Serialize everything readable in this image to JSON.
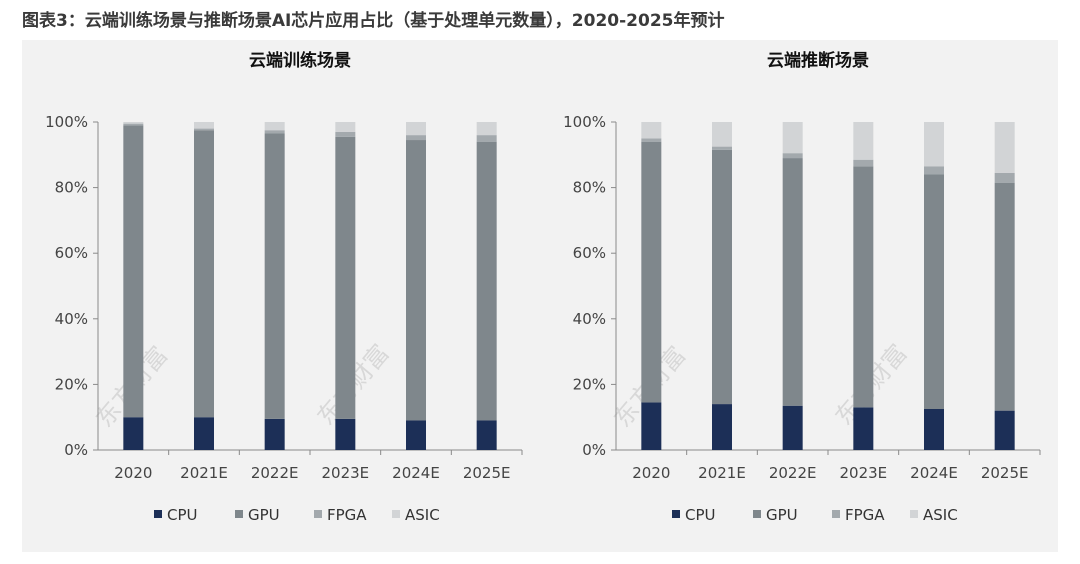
{
  "figure_title": "图表3：云端训练场景与推断场景AI芯片应用占比（基于处理单元数量），2020-2025年预计",
  "watermark": "东方财富",
  "colors": {
    "CPU": "#1c2f57",
    "GPU": "#7f878c",
    "FPGA": "#a3a9ad",
    "ASIC": "#d2d4d6",
    "axis": "#8a8a8a",
    "bg": "#f2f2f2"
  },
  "chart_data": [
    {
      "type": "bar",
      "stacked": true,
      "title": "云端训练场景",
      "categories": [
        "2020",
        "2021E",
        "2022E",
        "2023E",
        "2024E",
        "2025E"
      ],
      "ylim": [
        0,
        100
      ],
      "yticks": [
        "0%",
        "20%",
        "40%",
        "60%",
        "80%",
        "100%"
      ],
      "yunit": "%",
      "grid": false,
      "legend": "bottom",
      "series": [
        {
          "name": "CPU",
          "values": [
            10,
            10,
            9.5,
            9.5,
            9,
            9
          ]
        },
        {
          "name": "GPU",
          "values": [
            89,
            87.5,
            87,
            86,
            85.5,
            85
          ]
        },
        {
          "name": "FPGA",
          "values": [
            0.5,
            0.5,
            1,
            1.5,
            1.5,
            2
          ]
        },
        {
          "name": "ASIC",
          "values": [
            0.5,
            2,
            2.5,
            3,
            4,
            4
          ]
        }
      ]
    },
    {
      "type": "bar",
      "stacked": true,
      "title": "云端推断场景",
      "categories": [
        "2020",
        "2021E",
        "2022E",
        "2023E",
        "2024E",
        "2025E"
      ],
      "ylim": [
        0,
        100
      ],
      "yticks": [
        "0%",
        "20%",
        "40%",
        "60%",
        "80%",
        "100%"
      ],
      "yunit": "%",
      "grid": false,
      "legend": "bottom",
      "series": [
        {
          "name": "CPU",
          "values": [
            14.5,
            14,
            13.5,
            13,
            12.5,
            12
          ]
        },
        {
          "name": "GPU",
          "values": [
            79.5,
            77.5,
            75.5,
            73.5,
            71.5,
            69.5
          ]
        },
        {
          "name": "FPGA",
          "values": [
            1,
            1,
            1.5,
            2,
            2.5,
            3
          ]
        },
        {
          "name": "ASIC",
          "values": [
            5,
            7.5,
            9.5,
            11.5,
            13.5,
            15.5
          ]
        }
      ]
    }
  ]
}
